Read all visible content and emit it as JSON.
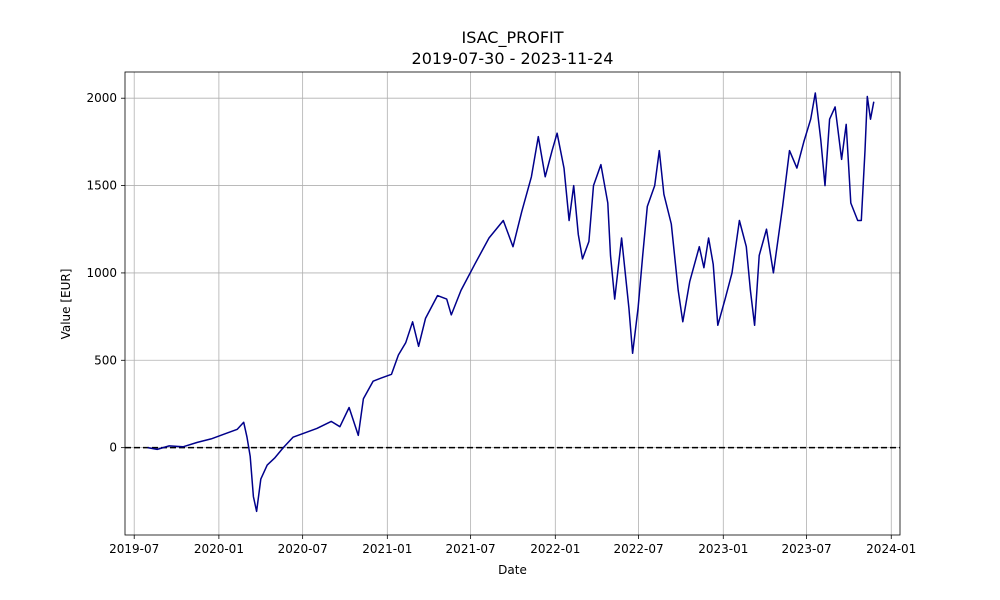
{
  "chart_data": {
    "type": "line",
    "title": "ISAC_PROFIT",
    "subtitle": "2019-07-30 - 2023-11-24",
    "xlabel": "Date",
    "ylabel": "Value [EUR]",
    "grid": true,
    "xlim": [
      "2019-06-11",
      "2024-01-20"
    ],
    "ylim": [
      -500,
      2150
    ],
    "xticks": [
      "2019-07",
      "2020-01",
      "2020-07",
      "2021-01",
      "2021-07",
      "2022-01",
      "2022-07",
      "2023-01",
      "2023-07",
      "2024-01"
    ],
    "yticks": [
      0,
      500,
      1000,
      1500,
      2000
    ],
    "reference_line": {
      "y": 0,
      "style": "dashed",
      "color": "#000000"
    },
    "series": [
      {
        "name": "ISAC_PROFIT",
        "color": "#00008b",
        "points": [
          [
            "2019-07-30",
            0
          ],
          [
            "2019-08-20",
            -10
          ],
          [
            "2019-09-15",
            10
          ],
          [
            "2019-10-15",
            5
          ],
          [
            "2019-11-15",
            30
          ],
          [
            "2019-12-15",
            50
          ],
          [
            "2020-01-15",
            80
          ],
          [
            "2020-02-10",
            105
          ],
          [
            "2020-02-24",
            145
          ],
          [
            "2020-03-02",
            60
          ],
          [
            "2020-03-09",
            -50
          ],
          [
            "2020-03-16",
            -280
          ],
          [
            "2020-03-23",
            -365
          ],
          [
            "2020-04-01",
            -180
          ],
          [
            "2020-04-15",
            -100
          ],
          [
            "2020-05-01",
            -60
          ],
          [
            "2020-05-20",
            0
          ],
          [
            "2020-06-10",
            60
          ],
          [
            "2020-07-01",
            80
          ],
          [
            "2020-08-01",
            110
          ],
          [
            "2020-09-01",
            150
          ],
          [
            "2020-09-20",
            120
          ],
          [
            "2020-10-10",
            230
          ],
          [
            "2020-10-30",
            70
          ],
          [
            "2020-11-10",
            280
          ],
          [
            "2020-12-01",
            380
          ],
          [
            "2020-12-20",
            400
          ],
          [
            "2021-01-10",
            420
          ],
          [
            "2021-01-25",
            530
          ],
          [
            "2021-02-10",
            600
          ],
          [
            "2021-02-25",
            720
          ],
          [
            "2021-03-10",
            580
          ],
          [
            "2021-03-25",
            740
          ],
          [
            "2021-04-20",
            870
          ],
          [
            "2021-05-10",
            850
          ],
          [
            "2021-05-20",
            760
          ],
          [
            "2021-06-10",
            900
          ],
          [
            "2021-07-10",
            1050
          ],
          [
            "2021-08-10",
            1200
          ],
          [
            "2021-09-10",
            1300
          ],
          [
            "2021-10-01",
            1150
          ],
          [
            "2021-10-20",
            1350
          ],
          [
            "2021-11-10",
            1550
          ],
          [
            "2021-11-25",
            1780
          ],
          [
            "2021-12-10",
            1550
          ],
          [
            "2021-12-25",
            1700
          ],
          [
            "2022-01-05",
            1800
          ],
          [
            "2022-01-20",
            1600
          ],
          [
            "2022-01-31",
            1300
          ],
          [
            "2022-02-10",
            1500
          ],
          [
            "2022-02-20",
            1220
          ],
          [
            "2022-03-01",
            1080
          ],
          [
            "2022-03-15",
            1180
          ],
          [
            "2022-03-25",
            1500
          ],
          [
            "2022-04-10",
            1620
          ],
          [
            "2022-04-25",
            1400
          ],
          [
            "2022-05-01",
            1100
          ],
          [
            "2022-05-10",
            850
          ],
          [
            "2022-05-25",
            1200
          ],
          [
            "2022-06-10",
            800
          ],
          [
            "2022-06-18",
            540
          ],
          [
            "2022-06-30",
            800
          ],
          [
            "2022-07-10",
            1100
          ],
          [
            "2022-07-20",
            1380
          ],
          [
            "2022-08-05",
            1500
          ],
          [
            "2022-08-15",
            1700
          ],
          [
            "2022-08-25",
            1450
          ],
          [
            "2022-09-10",
            1280
          ],
          [
            "2022-09-25",
            900
          ],
          [
            "2022-10-05",
            720
          ],
          [
            "2022-10-20",
            950
          ],
          [
            "2022-11-10",
            1150
          ],
          [
            "2022-11-20",
            1030
          ],
          [
            "2022-11-30",
            1200
          ],
          [
            "2022-12-10",
            1050
          ],
          [
            "2022-12-20",
            700
          ],
          [
            "2023-01-05",
            850
          ],
          [
            "2023-01-20",
            1000
          ],
          [
            "2023-02-05",
            1300
          ],
          [
            "2023-02-20",
            1150
          ],
          [
            "2023-03-01",
            900
          ],
          [
            "2023-03-10",
            700
          ],
          [
            "2023-03-20",
            1100
          ],
          [
            "2023-04-05",
            1250
          ],
          [
            "2023-04-20",
            1000
          ],
          [
            "2023-05-10",
            1380
          ],
          [
            "2023-05-25",
            1700
          ],
          [
            "2023-06-10",
            1600
          ],
          [
            "2023-06-25",
            1750
          ],
          [
            "2023-07-10",
            1880
          ],
          [
            "2023-07-20",
            2030
          ],
          [
            "2023-08-01",
            1760
          ],
          [
            "2023-08-10",
            1500
          ],
          [
            "2023-08-20",
            1880
          ],
          [
            "2023-09-01",
            1950
          ],
          [
            "2023-09-15",
            1650
          ],
          [
            "2023-09-25",
            1850
          ],
          [
            "2023-10-05",
            1400
          ],
          [
            "2023-10-20",
            1300
          ],
          [
            "2023-10-28",
            1300
          ],
          [
            "2023-11-05",
            1700
          ],
          [
            "2023-11-10",
            2010
          ],
          [
            "2023-11-17",
            1880
          ],
          [
            "2023-11-24",
            1980
          ]
        ]
      }
    ]
  }
}
